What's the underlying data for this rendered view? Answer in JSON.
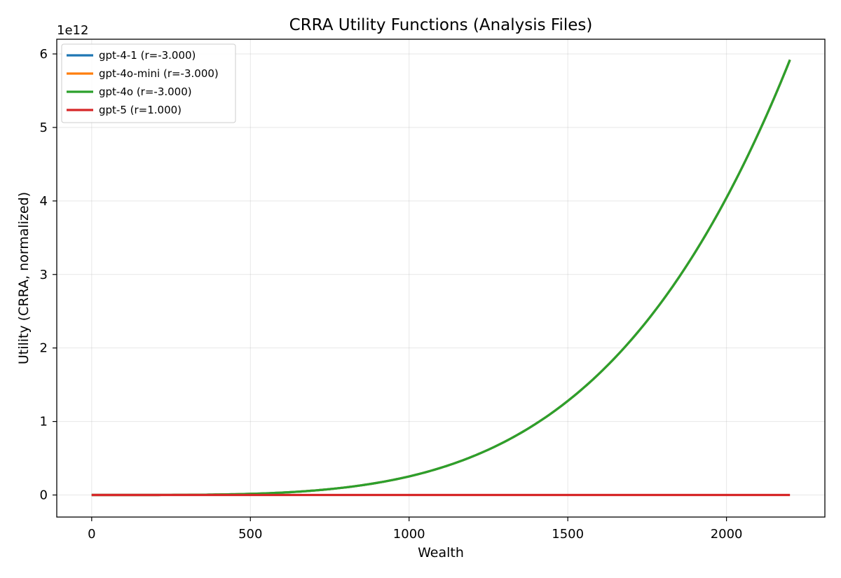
{
  "chart_data": {
    "type": "line",
    "title": "CRRA Utility Functions (Analysis Files)",
    "xlabel": "Wealth",
    "ylabel": "Utility (CRRA, normalized)",
    "y_offset_text": "1e12",
    "xlim": [
      -110,
      2310
    ],
    "ylim": [
      -0.3,
      6.2
    ],
    "x_ticks": [
      0,
      500,
      1000,
      1500,
      2000
    ],
    "y_ticks": [
      0,
      1,
      2,
      3,
      4,
      5,
      6
    ],
    "x_tick_labels": [
      "0",
      "500",
      "1000",
      "1500",
      "2000"
    ],
    "y_tick_labels": [
      "0",
      "1",
      "2",
      "3",
      "4",
      "5",
      "6"
    ],
    "grid": true,
    "legend_position": "top-left",
    "x_range": [
      0,
      2200
    ],
    "series": [
      {
        "name": "gpt-4-1 (r=-3.000)",
        "color": "#1f77b4",
        "function": "crra",
        "r": -3.0,
        "scale_1e12": 5.92
      },
      {
        "name": "gpt-4o-mini (r=-3.000)",
        "color": "#ff7f0e",
        "function": "crra",
        "r": -3.0,
        "scale_1e12": 5.92
      },
      {
        "name": "gpt-4o (r=-3.000)",
        "color": "#2ca02c",
        "function": "crra",
        "r": -3.0,
        "scale_1e12": 5.92
      },
      {
        "name": "gpt-5 (r=1.000)",
        "color": "#d62728",
        "function": "log",
        "r": 1.0,
        "scale_1e12": 0
      }
    ]
  }
}
